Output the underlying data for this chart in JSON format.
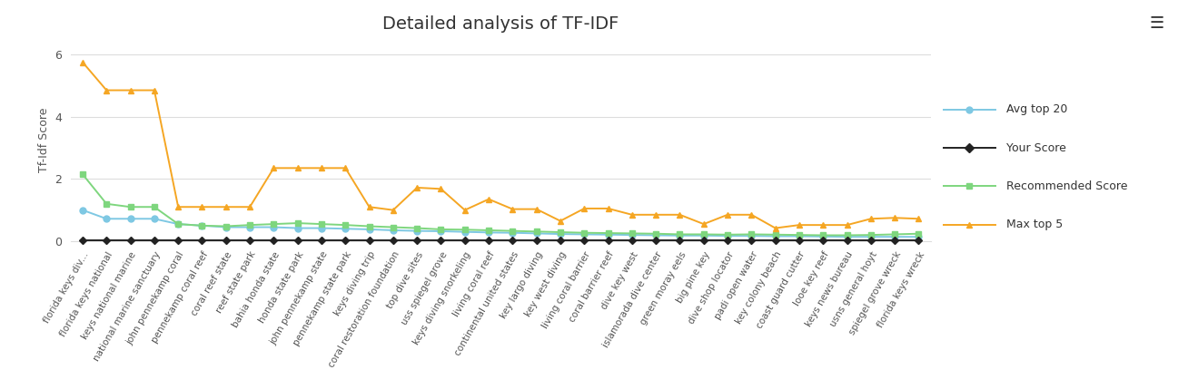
{
  "title": "Detailed analysis of TF-IDF",
  "ylabel": "Tf-Idf Score",
  "categories": [
    "florida keys div...",
    "florida keys national",
    "keys national marine",
    "national marine sanctuary",
    "john pennekamp coral",
    "pennekamp coral reef",
    "coral reef state",
    "reef state park",
    "bahia honda state",
    "honda state park",
    "john pennekamp state",
    "pennekamp state park",
    "keys diving trip",
    "coral restoration foundation",
    "top dive sites",
    "uss spiegel grove",
    "keys diving snorkeling",
    "living coral reef",
    "continental united states",
    "key largo diving",
    "key west diving",
    "living coral barrier",
    "coral barrier reef",
    "dive key west",
    "islamorada dive center",
    "green moray eels",
    "big pine key",
    "dive shop locator",
    "padi open water",
    "key colony beach",
    "coast guard cutter",
    "looe key reef",
    "keys news bureau",
    "usns general hoyt",
    "spiegel grove wreck",
    "florida keys wreck"
  ],
  "avg_top20": [
    1.0,
    0.72,
    0.72,
    0.72,
    0.55,
    0.5,
    0.45,
    0.45,
    0.45,
    0.42,
    0.42,
    0.4,
    0.38,
    0.35,
    0.33,
    0.32,
    0.3,
    0.28,
    0.27,
    0.25,
    0.23,
    0.22,
    0.21,
    0.2,
    0.19,
    0.18,
    0.18,
    0.17,
    0.17,
    0.16,
    0.16,
    0.15,
    0.14,
    0.14,
    0.14,
    0.14
  ],
  "your_score": [
    0.02,
    0.02,
    0.02,
    0.02,
    0.02,
    0.02,
    0.02,
    0.02,
    0.02,
    0.02,
    0.02,
    0.02,
    0.02,
    0.02,
    0.02,
    0.02,
    0.02,
    0.02,
    0.02,
    0.02,
    0.02,
    0.02,
    0.02,
    0.02,
    0.02,
    0.02,
    0.02,
    0.02,
    0.02,
    0.02,
    0.02,
    0.02,
    0.02,
    0.02,
    0.02,
    0.02
  ],
  "recommended_score": [
    2.15,
    1.2,
    1.1,
    1.1,
    0.55,
    0.5,
    0.48,
    0.52,
    0.55,
    0.58,
    0.55,
    0.52,
    0.48,
    0.45,
    0.42,
    0.38,
    0.37,
    0.35,
    0.33,
    0.31,
    0.29,
    0.27,
    0.26,
    0.25,
    0.24,
    0.22,
    0.22,
    0.21,
    0.22,
    0.21,
    0.2,
    0.19,
    0.19,
    0.2,
    0.22,
    0.24
  ],
  "max_top5": [
    5.75,
    4.85,
    4.85,
    4.85,
    1.1,
    1.1,
    1.1,
    1.1,
    2.35,
    2.35,
    2.35,
    2.35,
    1.1,
    1.0,
    1.72,
    1.68,
    1.0,
    1.35,
    1.03,
    1.03,
    0.65,
    1.05,
    1.05,
    0.85,
    0.85,
    0.85,
    0.55,
    0.85,
    0.85,
    0.42,
    0.52,
    0.52,
    0.52,
    0.72,
    0.75,
    0.72
  ],
  "color_avg": "#7ec8e3",
  "color_your": "#222222",
  "color_rec": "#7ed67e",
  "color_max": "#f5a623",
  "ylim": [
    0,
    6.5
  ],
  "yticks": [
    0,
    2,
    4,
    6
  ],
  "legend_labels": [
    "Avg top 20",
    "Your Score",
    "Recommended Score",
    "Max top 5"
  ],
  "background_color": "#ffffff",
  "grid_color": "#dddddd",
  "title_fontsize": 14,
  "axis_label_fontsize": 9,
  "tick_label_fontsize": 7.5,
  "legend_fontsize": 9
}
